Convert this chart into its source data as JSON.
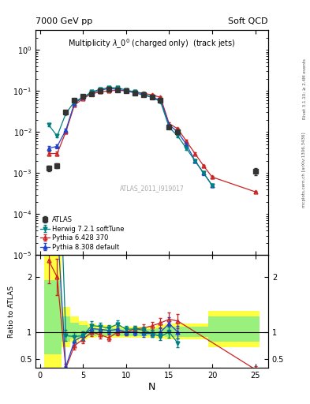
{
  "title_left": "7000 GeV pp",
  "title_right": "Soft QCD",
  "plot_title": "Multiplicity $\\lambda$_0$^0$ (charged only)  (track jets)",
  "watermark": "ATLAS_2011_I919017",
  "right_label_top": "Rivet 3.1.10; ≥ 2.4M events",
  "right_label_bottom": "mcplots.cern.ch [arXiv:1306.3436]",
  "xlabel": "N",
  "ylabel_bottom": "Ratio to ATLAS",
  "atlas_N": [
    1,
    2,
    3,
    4,
    5,
    6,
    7,
    8,
    9,
    10,
    11,
    12,
    13,
    14,
    15,
    16,
    25
  ],
  "atlas_y": [
    0.0013,
    0.0015,
    0.03,
    0.06,
    0.075,
    0.085,
    0.1,
    0.112,
    0.105,
    0.1,
    0.09,
    0.082,
    0.072,
    0.06,
    0.013,
    0.01,
    0.0011
  ],
  "atlas_yerr": [
    0.0002,
    0.0002,
    0.003,
    0.005,
    0.005,
    0.005,
    0.005,
    0.005,
    0.005,
    0.005,
    0.004,
    0.004,
    0.004,
    0.004,
    0.001,
    0.0008,
    0.0002
  ],
  "herwig_N": [
    1,
    2,
    3,
    4,
    5,
    6,
    7,
    8,
    9,
    10,
    11,
    12,
    13,
    14,
    15,
    16,
    17,
    18,
    19,
    20
  ],
  "herwig_y": [
    0.015,
    0.008,
    0.028,
    0.055,
    0.07,
    0.095,
    0.11,
    0.12,
    0.12,
    0.105,
    0.095,
    0.085,
    0.07,
    0.055,
    0.013,
    0.008,
    0.004,
    0.002,
    0.001,
    0.0005
  ],
  "herwig_yerr": [
    0.001,
    0.0005,
    0.001,
    0.002,
    0.003,
    0.003,
    0.004,
    0.004,
    0.004,
    0.004,
    0.003,
    0.003,
    0.003,
    0.002,
    0.0008,
    0.0005,
    0.0003,
    0.0001,
    5e-05,
    3e-05
  ],
  "pythia6_N": [
    1,
    2,
    3,
    4,
    5,
    6,
    7,
    8,
    9,
    10,
    11,
    12,
    13,
    14,
    15,
    16,
    17,
    18,
    19,
    20,
    25
  ],
  "pythia6_y": [
    0.003,
    0.003,
    0.01,
    0.045,
    0.065,
    0.085,
    0.095,
    0.1,
    0.105,
    0.1,
    0.095,
    0.088,
    0.08,
    0.07,
    0.016,
    0.012,
    0.006,
    0.003,
    0.0015,
    0.0008,
    0.00035
  ],
  "pythia6_yerr": [
    0.0003,
    0.0003,
    0.0008,
    0.002,
    0.003,
    0.003,
    0.004,
    0.004,
    0.004,
    0.004,
    0.003,
    0.003,
    0.003,
    0.003,
    0.001,
    0.0008,
    0.0004,
    0.0002,
    0.0001,
    5e-05,
    2e-05
  ],
  "pythia8_N": [
    1,
    2,
    3,
    4,
    5,
    6,
    7,
    8,
    9,
    10,
    11,
    12,
    13,
    14,
    15,
    16,
    17,
    18,
    19,
    20
  ],
  "pythia8_y": [
    0.004,
    0.0045,
    0.011,
    0.05,
    0.07,
    0.09,
    0.105,
    0.115,
    0.11,
    0.1,
    0.09,
    0.08,
    0.07,
    0.06,
    0.015,
    0.01,
    0.005,
    0.002,
    0.001,
    0.0005
  ],
  "pythia8_yerr": [
    0.0005,
    0.0005,
    0.001,
    0.002,
    0.003,
    0.003,
    0.004,
    0.004,
    0.004,
    0.004,
    0.003,
    0.003,
    0.003,
    0.003,
    0.001,
    0.0008,
    0.0004,
    0.0002,
    0.0001,
    5e-05
  ],
  "atlas_color": "#333333",
  "herwig_color": "#008080",
  "pythia6_color": "#cc2222",
  "pythia8_color": "#2244cc",
  "ylim_main": [
    1e-05,
    3.0
  ],
  "ylim_ratio": [
    0.35,
    2.4
  ],
  "xlim": [
    -0.5,
    26.5
  ]
}
